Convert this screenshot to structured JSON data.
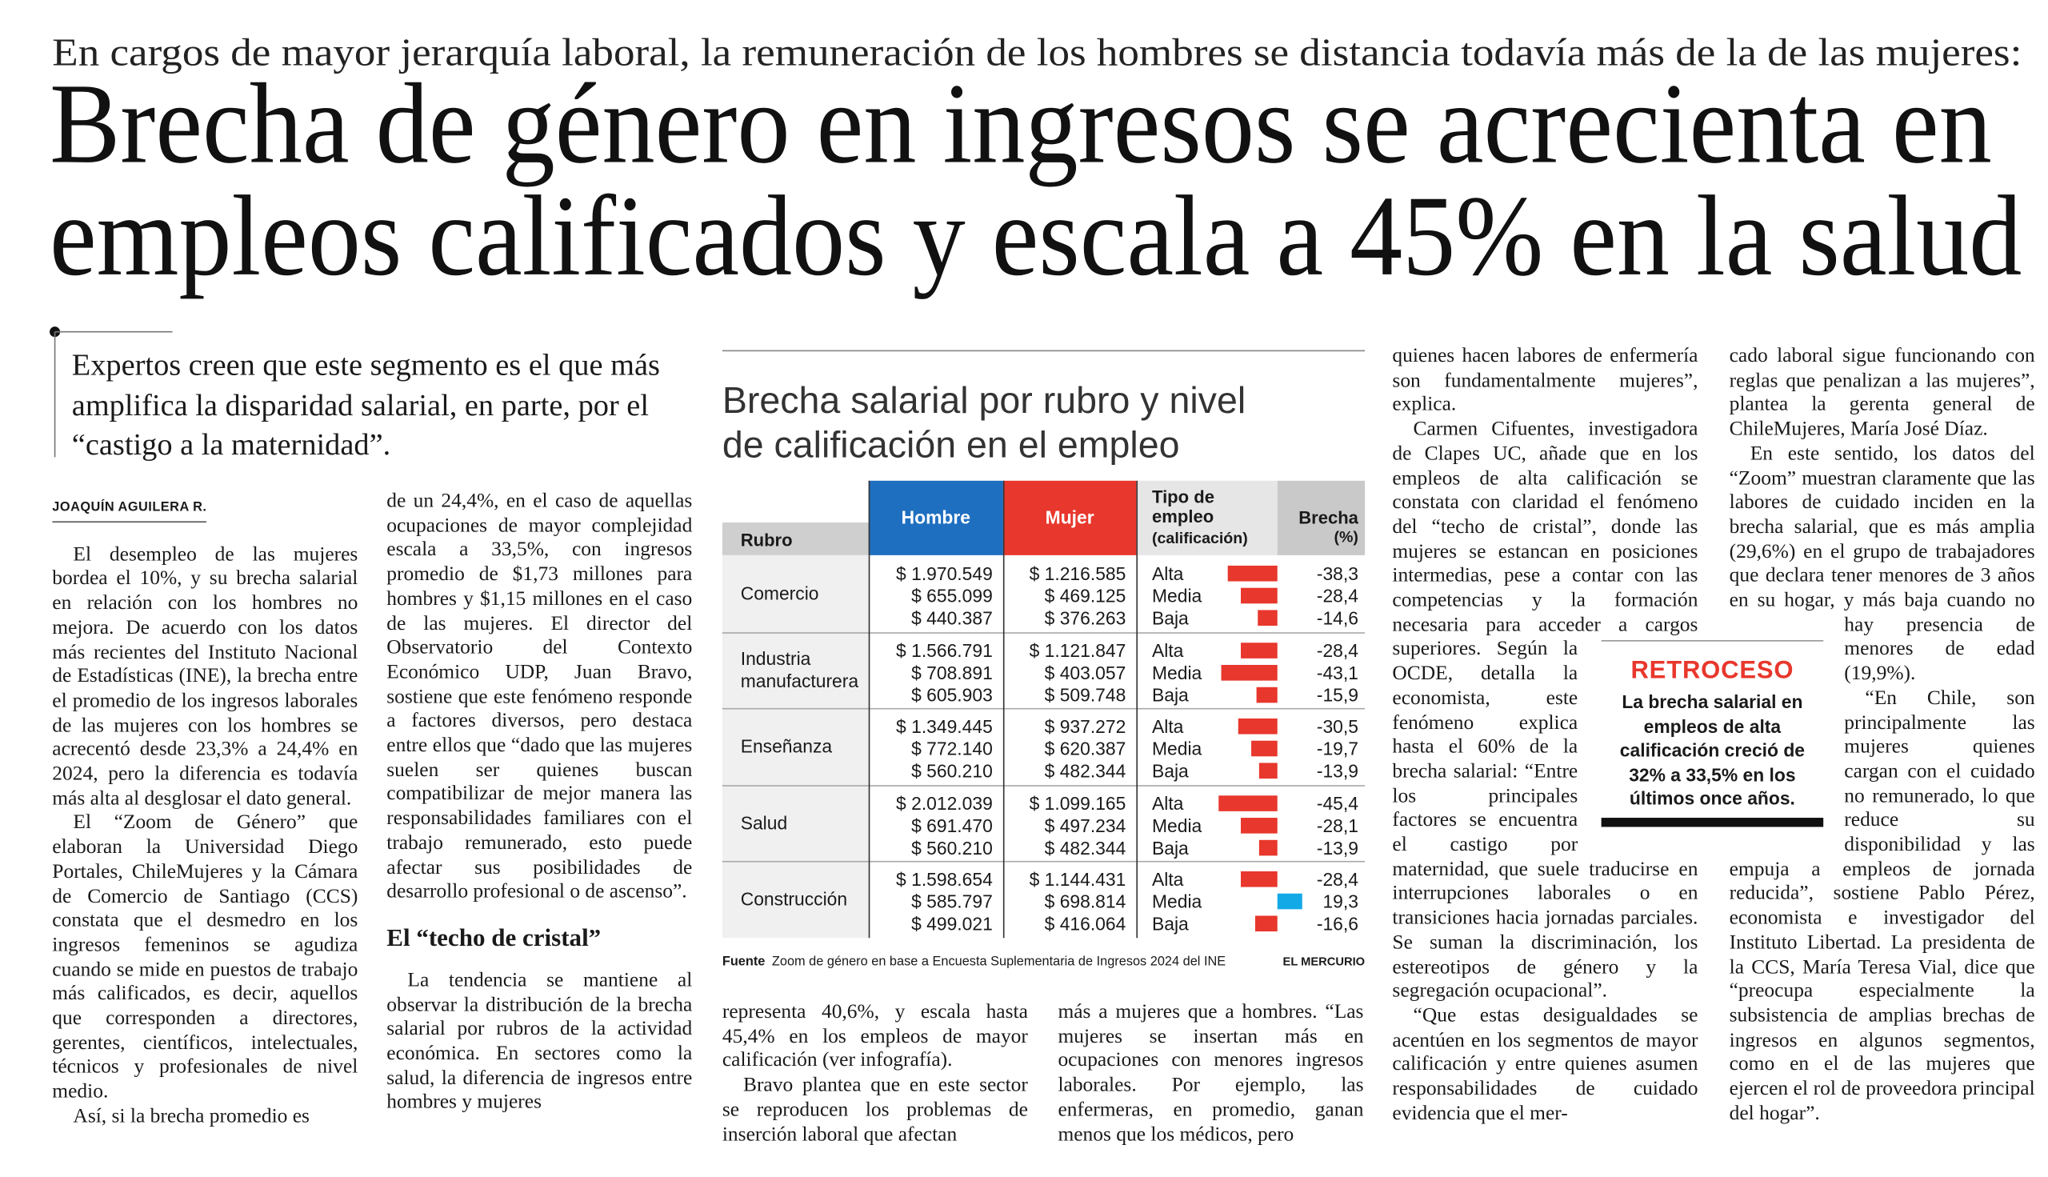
{
  "kicker": "En cargos de mayor jerarquía laboral, la remuneración de los hombres se distancia todavía más de la de las mujeres:",
  "title": [
    "Brecha de género en ingresos se acrecienta en",
    "empleos calificados y escala a 45% en la salud"
  ],
  "lead": "Expertos creen que este segmento es el que más amplifica la disparidad salarial, en parte, por el “castigo a la maternidad”.",
  "byline": "JOAQUÍN AGUILERA R.",
  "subhead": "El “techo de cristal”",
  "columns": [
    [
      "El desempleo de las mujeres bordea el 10%, y su brecha salarial en relación con los hombres no mejora. De acuerdo con los datos más recientes del Instituto Nacional de Estadísticas (INE), la brecha entre el promedio de los ingresos laborales de las mujeres con los hombres se acrecentó desde 23,3% a 24,4% en 2024, pero la diferencia es todavía más alta al desglosar el dato general.",
      "El “Zoom de Género” que elaboran la Universidad Diego Portales, ChileMujeres y la Cámara de Comercio de Santiago (CCS) constata que el desmedro en los ingresos femeninos se agudiza cuando se mide en puestos de trabajo más calificados, es decir, aquellos que corresponden a directores, gerentes, científicos, intelectuales, técnicos y profesionales de nivel medio.",
      "Así, si la brecha promedio es"
    ],
    [
      "de un 24,4%, en el caso de aquellas ocupaciones de mayor complejidad escala a 33,5%, con ingresos promedio de $1,73 millones para hombres y $1,15 millones en el caso de las mujeres. El director del Observatorio del Contexto Económico UDP, Juan Bravo, sostiene que este fenómeno responde a factores diversos, pero destaca entre ellos que “dado que las mujeres suelen ser quienes buscan compatibilizar de mejor manera las responsabilidades familiares con el trabajo remunerado, esto puede afectar sus posibilidades de desarrollo profesional o de ascenso”.",
      "La tendencia se mantiene al observar la distribución de la brecha salarial por rubros de la actividad económica. En sectores como la salud, la diferencia de ingresos entre hombres y mujeres"
    ],
    [
      "representa 40,6%, y escala hasta 45,4% en los empleos de mayor calificación (ver infografía).",
      "Bravo plantea que en este sector se reproducen los problemas de inserción laboral que afectan"
    ],
    [
      "más a mujeres que a hombres. “Las mujeres se insertan más en ocupaciones con menores ingresos laborales. Por ejemplo, las enfermeras, en promedio, ganan menos que los médicos, pero"
    ],
    [
      "quienes hacen labores de enfermería son fundamentalmente mujeres”, explica.",
      "Carmen Cifuentes, investigadora de Clapes UC, añade que en los empleos de alta calificación se constata con claridad el fenómeno del “techo de cristal”, donde las mujeres se estancan en posiciones intermedias, pese a contar con las competencias y la formación necesaria para acceder a cargos superiores. Según la OCDE, detalla la economista, este fenómeno explica hasta el 60% de la brecha salarial: “Entre los principales factores se encuentra el castigo por maternidad, que suele traducirse en interrupciones laborales o en transiciones hacia jornadas parciales. Se suman la discriminación, los estereotipos de género y la segregación ocupacional”.",
      "“Que estas desigualdades se acentúen en los segmentos de mayor calificación y entre quienes asumen responsabilidades de cuidado evidencia que el mer-"
    ],
    [
      "cado laboral sigue funcionando con reglas que penalizan a las mujeres”, plantea la gerenta general de ChileMujeres, María José Díaz.",
      "En este sentido, los datos del “Zoom” muestran claramente que las labores de cuidado inciden en la brecha salarial, que es más amplia (29,6%) en el grupo de trabajadores que declara tener menores de 3 años en su hogar, y más baja cuando no hay presencia de menores de edad (19,9%).",
      "“En Chile, son principalmente las mujeres quienes cargan con el cuidado no remunerado, lo que reduce su disponibilidad y las empuja a empleos de jornada reducida”, sostiene Pablo Pérez, economista e investigador del Instituto Libertad. La presidenta de la CCS, María Teresa Vial, dice que “preocupa especialmente la subsistencia de amplias brechas de ingresos en algunos segmentos, como en el de las mujeres que ejercen el rol de proveedora principal del hogar”."
    ]
  ],
  "infographic": {
    "title": [
      "Brecha salarial por rubro y nivel",
      "de calificación en el empleo"
    ],
    "headers": {
      "rubro": "Rubro",
      "hombre": "Hombre",
      "mujer": "Mujer",
      "tipo": "Tipo de empleo",
      "tipo_sub": "(calificación)",
      "brecha": "Brecha",
      "brecha_sub": "(%)"
    },
    "bar_colors": {
      "negative": "#e8372c",
      "positive": "#13a9e6"
    },
    "rows": [
      {
        "rubro": "Comercio",
        "hombre": [
          "$ 1.970.549",
          "$ 655.099",
          "$ 440.387"
        ],
        "mujer": [
          "$ 1.216.585",
          "$ 469.125",
          "$ 376.263"
        ],
        "tipo": [
          "Alta",
          "Media",
          "Baja"
        ],
        "brecha": [
          -38.3,
          -28.4,
          -14.6
        ],
        "brecha_labels": [
          "-38,3",
          "-28,4",
          "-14,6"
        ]
      },
      {
        "rubro": "Industria manufacturera",
        "hombre": [
          "$ 1.566.791",
          "$ 708.891",
          "$ 605.903"
        ],
        "mujer": [
          "$ 1.121.847",
          "$ 403.057",
          "$ 509.748"
        ],
        "tipo": [
          "Alta",
          "Media",
          "Baja"
        ],
        "brecha": [
          -28.4,
          -43.1,
          -15.9
        ],
        "brecha_labels": [
          "-28,4",
          "-43,1",
          "-15,9"
        ]
      },
      {
        "rubro": "Enseñanza",
        "hombre": [
          "$ 1.349.445",
          "$ 772.140",
          "$ 560.210"
        ],
        "mujer": [
          "$ 937.272",
          "$ 620.387",
          "$ 482.344"
        ],
        "tipo": [
          "Alta",
          "Media",
          "Baja"
        ],
        "brecha": [
          -30.5,
          -19.7,
          -13.9
        ],
        "brecha_labels": [
          "-30,5",
          "-19,7",
          "-13,9"
        ]
      },
      {
        "rubro": "Salud",
        "hombre": [
          "$ 2.012.039",
          "$ 691.470",
          "$ 560.210"
        ],
        "mujer": [
          "$ 1.099.165",
          "$ 497.234",
          "$ 482.344"
        ],
        "tipo": [
          "Alta",
          "Media",
          "Baja"
        ],
        "brecha": [
          -45.4,
          -28.1,
          -13.9
        ],
        "brecha_labels": [
          "-45,4",
          "-28,1",
          "-13,9"
        ]
      },
      {
        "rubro": "Construcción",
        "hombre": [
          "$ 1.598.654",
          "$ 585.797",
          "$ 499.021"
        ],
        "mujer": [
          "$ 1.144.431",
          "$ 698.814",
          "$ 416.064"
        ],
        "tipo": [
          "Alta",
          "Media",
          "Baja"
        ],
        "brecha": [
          -28.4,
          19.3,
          -16.6
        ],
        "brecha_labels": [
          "-28,4",
          "19,3",
          "-16,6"
        ]
      }
    ],
    "source_label": "Fuente",
    "source": "Zoom de género en base a Encuesta Suplementaria de Ingresos 2024 del INE",
    "credit": "EL MERCURIO"
  },
  "sidebar": {
    "label": "RETROCESO",
    "text": "La brecha salarial en empleos de alta calificación creció de 32% a 33,5% en los últimos once años."
  }
}
